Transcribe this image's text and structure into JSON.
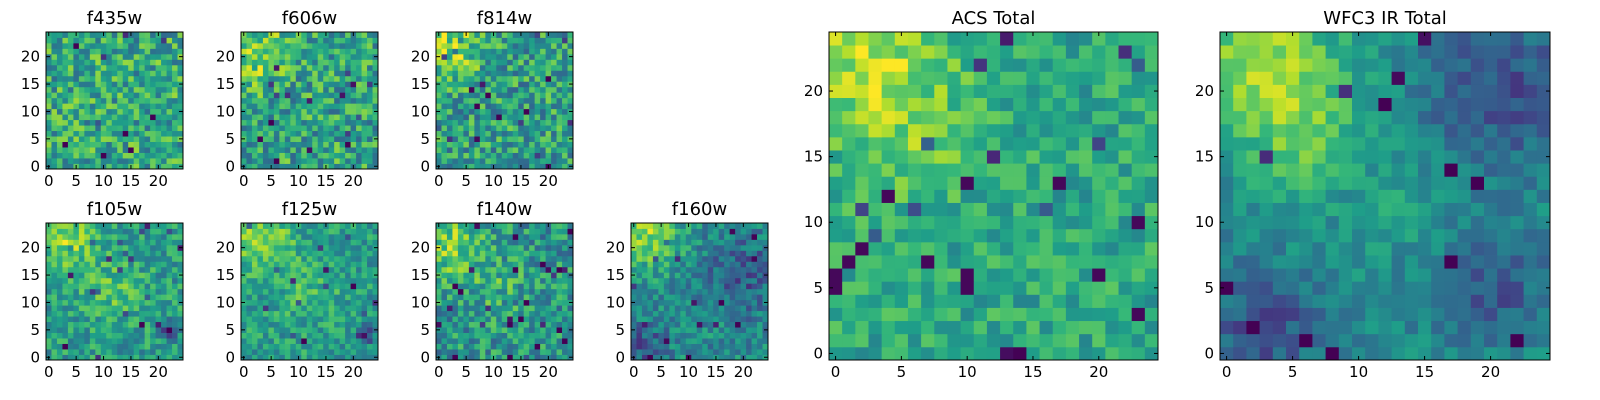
{
  "chart_data": [
    {
      "type": "heatmap",
      "title": "f435w",
      "size": 25,
      "colormap": "viridis",
      "vmin": 0,
      "vmax": 1,
      "xticks": [
        0,
        5,
        10,
        15,
        20
      ],
      "yticks": [
        0,
        5,
        10,
        15,
        20
      ],
      "xlim": [
        -0.5,
        24.5
      ],
      "ylim": [
        -0.5,
        24.5
      ],
      "seed": 11,
      "field": {
        "blobs": [],
        "base": 0.6,
        "noise": 0.25
      }
    },
    {
      "type": "heatmap",
      "title": "f606w",
      "size": 25,
      "colormap": "viridis",
      "vmin": 0,
      "vmax": 1,
      "xticks": [
        0,
        5,
        10,
        15,
        20
      ],
      "yticks": [
        0,
        5,
        10,
        15,
        20
      ],
      "xlim": [
        -0.5,
        24.5
      ],
      "ylim": [
        -0.5,
        24.5
      ],
      "seed": 23,
      "field": {
        "blobs": [
          {
            "x": 3,
            "y": 21,
            "amp": 0.25,
            "r": 4
          }
        ],
        "base": 0.58,
        "noise": 0.25
      }
    },
    {
      "type": "heatmap",
      "title": "f814w",
      "size": 25,
      "colormap": "viridis",
      "vmin": 0,
      "vmax": 1,
      "xticks": [
        0,
        5,
        10,
        15,
        20
      ],
      "yticks": [
        0,
        5,
        10,
        15,
        20
      ],
      "xlim": [
        -0.5,
        24.5
      ],
      "ylim": [
        -0.5,
        24.5
      ],
      "seed": 37,
      "field": {
        "blobs": [
          {
            "x": 2,
            "y": 22,
            "amp": 0.28,
            "r": 4
          }
        ],
        "base": 0.56,
        "noise": 0.25
      }
    },
    {
      "type": "heatmap",
      "title": "f105w",
      "size": 25,
      "colormap": "viridis",
      "vmin": 0,
      "vmax": 1,
      "xticks": [
        0,
        5,
        10,
        15,
        20
      ],
      "yticks": [
        0,
        5,
        10,
        15,
        20
      ],
      "xlim": [
        -0.5,
        24.5
      ],
      "ylim": [
        -0.5,
        24.5
      ],
      "seed": 41,
      "field": {
        "blobs": [
          {
            "x": 3,
            "y": 22,
            "amp": 0.28,
            "r": 4
          },
          {
            "x": 12,
            "y": 12,
            "amp": 0.15,
            "r": 4
          },
          {
            "x": 22,
            "y": 5,
            "amp": -0.5,
            "r": 1
          }
        ],
        "base": 0.55,
        "noise": 0.18
      }
    },
    {
      "type": "heatmap",
      "title": "f125w",
      "size": 25,
      "colormap": "viridis",
      "vmin": 0,
      "vmax": 1,
      "xticks": [
        0,
        5,
        10,
        15,
        20
      ],
      "yticks": [
        0,
        5,
        10,
        15,
        20
      ],
      "xlim": [
        -0.5,
        24.5
      ],
      "ylim": [
        -0.5,
        24.5
      ],
      "seed": 53,
      "field": {
        "blobs": [
          {
            "x": 3,
            "y": 22,
            "amp": 0.3,
            "r": 4
          },
          {
            "x": 12,
            "y": 12,
            "amp": 0.12,
            "r": 4
          },
          {
            "x": 22,
            "y": 4,
            "amp": -0.55,
            "r": 1
          }
        ],
        "base": 0.55,
        "noise": 0.17
      }
    },
    {
      "type": "heatmap",
      "title": "f140w",
      "size": 25,
      "colormap": "viridis",
      "vmin": 0,
      "vmax": 1,
      "xticks": [
        0,
        5,
        10,
        15,
        20
      ],
      "yticks": [
        0,
        5,
        10,
        15,
        20
      ],
      "xlim": [
        -0.5,
        24.5
      ],
      "ylim": [
        -0.5,
        24.5
      ],
      "seed": 67,
      "field": {
        "blobs": [
          {
            "x": 2,
            "y": 21,
            "amp": 0.3,
            "r": 4
          },
          {
            "x": 10,
            "y": 13,
            "amp": 0.12,
            "r": 4
          }
        ],
        "base": 0.52,
        "noise": 0.22
      }
    },
    {
      "type": "heatmap",
      "title": "f160w",
      "size": 25,
      "colormap": "viridis",
      "vmin": 0,
      "vmax": 1,
      "xticks": [
        0,
        5,
        10,
        15,
        20
      ],
      "yticks": [
        0,
        5,
        10,
        15,
        20
      ],
      "xlim": [
        -0.5,
        24.5
      ],
      "ylim": [
        -0.5,
        24.5
      ],
      "seed": 79,
      "field": {
        "blobs": [
          {
            "x": 3,
            "y": 22,
            "amp": 0.35,
            "r": 4
          },
          {
            "x": 20,
            "y": 15,
            "amp": -0.2,
            "r": 5
          },
          {
            "x": 2,
            "y": 2,
            "amp": -0.2,
            "r": 3
          }
        ],
        "base": 0.48,
        "noise": 0.17
      }
    },
    {
      "type": "heatmap",
      "title": "ACS Total",
      "size": 25,
      "colormap": "viridis",
      "vmin": 0,
      "vmax": 1,
      "xticks": [
        0,
        5,
        10,
        15,
        20
      ],
      "yticks": [
        0,
        5,
        10,
        15,
        20
      ],
      "xlim": [
        -0.5,
        24.5
      ],
      "ylim": [
        -0.5,
        24.5
      ],
      "seed": 97,
      "field": {
        "blobs": [
          {
            "x": 3,
            "y": 22,
            "amp": 0.3,
            "r": 4
          },
          {
            "x": 6,
            "y": 15,
            "amp": 0.12,
            "r": 3
          }
        ],
        "base": 0.6,
        "noise": 0.15,
        "lows": [
          [
            10,
            13
          ],
          [
            17,
            13
          ],
          [
            10,
            6
          ],
          [
            10,
            5
          ],
          [
            7,
            7
          ],
          [
            2,
            8
          ],
          [
            0,
            5
          ],
          [
            0,
            6
          ],
          [
            1,
            7
          ],
          [
            23,
            10
          ],
          [
            23,
            3
          ],
          [
            20,
            6
          ],
          [
            4,
            12
          ]
        ]
      }
    },
    {
      "type": "heatmap",
      "title": "WFC3 IR Total",
      "size": 25,
      "colormap": "viridis",
      "vmin": 0,
      "vmax": 1,
      "xticks": [
        0,
        5,
        10,
        15,
        20
      ],
      "yticks": [
        0,
        5,
        10,
        15,
        20
      ],
      "xlim": [
        -0.5,
        24.5
      ],
      "ylim": [
        -0.5,
        24.5
      ],
      "seed": 113,
      "field": {
        "blobs": [
          {
            "x": 3,
            "y": 22,
            "amp": 0.38,
            "r": 4
          },
          {
            "x": 6,
            "y": 16,
            "amp": 0.2,
            "r": 3
          },
          {
            "x": 13,
            "y": 11,
            "amp": 0.15,
            "r": 2
          },
          {
            "x": 21,
            "y": 20,
            "amp": -0.25,
            "r": 4
          },
          {
            "x": 3,
            "y": 2,
            "amp": -0.25,
            "r": 3
          },
          {
            "x": 20,
            "y": 5,
            "amp": -0.22,
            "r": 3
          }
        ],
        "base": 0.48,
        "noise": 0.11
      }
    }
  ]
}
